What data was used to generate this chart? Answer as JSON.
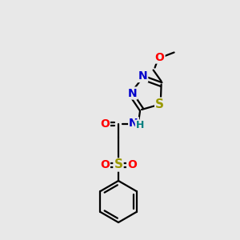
{
  "bg_color": "#e8e8e8",
  "colors": {
    "O": "#ff0000",
    "N": "#0000cc",
    "S": "#999900",
    "H": "#008080",
    "C": "#000000"
  }
}
